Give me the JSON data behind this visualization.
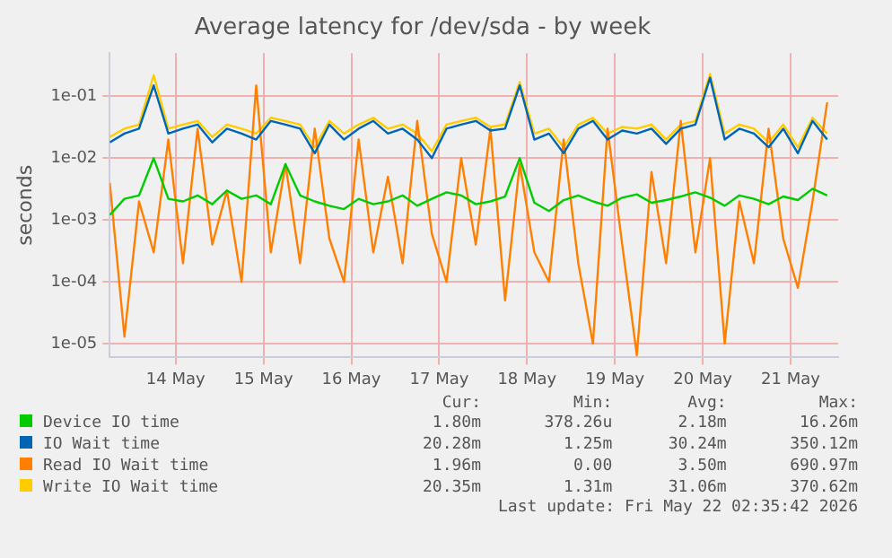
{
  "chart_data": {
    "type": "line",
    "title": "Average latency for /dev/sda - by week",
    "ylabel": "seconds",
    "x": [
      "2026-05-13T06:00",
      "2026-05-13T10:00",
      "2026-05-13T14:00",
      "2026-05-13T18:00",
      "2026-05-13T22:00",
      "2026-05-14T02:00",
      "2026-05-14T06:00",
      "2026-05-14T10:00",
      "2026-05-14T14:00",
      "2026-05-14T18:00",
      "2026-05-14T22:00",
      "2026-05-15T02:00",
      "2026-05-15T06:00",
      "2026-05-15T10:00",
      "2026-05-15T14:00",
      "2026-05-15T18:00",
      "2026-05-15T22:00",
      "2026-05-16T02:00",
      "2026-05-16T06:00",
      "2026-05-16T10:00",
      "2026-05-16T14:00",
      "2026-05-16T18:00",
      "2026-05-16T22:00",
      "2026-05-17T02:00",
      "2026-05-17T06:00",
      "2026-05-17T10:00",
      "2026-05-17T14:00",
      "2026-05-17T18:00",
      "2026-05-17T22:00",
      "2026-05-18T02:00",
      "2026-05-18T06:00",
      "2026-05-18T10:00",
      "2026-05-18T14:00",
      "2026-05-18T18:00",
      "2026-05-18T22:00",
      "2026-05-19T02:00",
      "2026-05-19T06:00",
      "2026-05-19T10:00",
      "2026-05-19T14:00",
      "2026-05-19T18:00",
      "2026-05-19T22:00",
      "2026-05-20T02:00",
      "2026-05-20T06:00",
      "2026-05-20T10:00",
      "2026-05-20T14:00",
      "2026-05-20T18:00",
      "2026-05-20T22:00",
      "2026-05-21T02:00",
      "2026-05-21T06:00",
      "2026-05-21T10:00"
    ],
    "series": [
      {
        "name": "Device IO time",
        "color": "#00cc00",
        "values": [
          0.0012,
          0.0022,
          0.0025,
          0.01,
          0.0022,
          0.002,
          0.0025,
          0.0018,
          0.003,
          0.0022,
          0.0025,
          0.0018,
          0.008,
          0.0025,
          0.002,
          0.0017,
          0.0015,
          0.0022,
          0.0018,
          0.002,
          0.0025,
          0.0017,
          0.0022,
          0.0028,
          0.0025,
          0.0018,
          0.002,
          0.0024,
          0.01,
          0.0019,
          0.0014,
          0.0021,
          0.0025,
          0.002,
          0.0017,
          0.0023,
          0.0026,
          0.0019,
          0.0021,
          0.0024,
          0.0028,
          0.0023,
          0.0017,
          0.0025,
          0.0022,
          0.0018,
          0.0024,
          0.0021,
          0.0032,
          0.0025
        ]
      },
      {
        "name": "IO Wait time",
        "color": "#0066b3",
        "values": [
          0.018,
          0.025,
          0.03,
          0.15,
          0.025,
          0.03,
          0.035,
          0.018,
          0.03,
          0.025,
          0.02,
          0.04,
          0.035,
          0.03,
          0.012,
          0.035,
          0.02,
          0.03,
          0.04,
          0.025,
          0.03,
          0.02,
          0.01,
          0.03,
          0.035,
          0.04,
          0.028,
          0.03,
          0.15,
          0.02,
          0.025,
          0.012,
          0.03,
          0.04,
          0.02,
          0.028,
          0.025,
          0.03,
          0.017,
          0.03,
          0.035,
          0.2,
          0.02,
          0.03,
          0.025,
          0.015,
          0.03,
          0.012,
          0.04,
          0.02
        ]
      },
      {
        "name": "Read IO Wait time",
        "color": "#ff8000",
        "values": [
          0.004,
          1.3e-05,
          0.002,
          0.0003,
          0.02,
          0.0002,
          0.03,
          0.0004,
          0.003,
          0.0001,
          0.15,
          0.0003,
          0.008,
          0.0002,
          0.03,
          0.0005,
          0.0001,
          0.02,
          0.0003,
          0.005,
          0.0002,
          0.04,
          0.0006,
          0.0001,
          0.01,
          0.0004,
          0.03,
          5e-05,
          0.008,
          0.0003,
          0.0001,
          0.02,
          0.0002,
          1e-05,
          0.03,
          0.0004,
          6.5e-06,
          0.006,
          0.0002,
          0.04,
          0.0003,
          0.01,
          1e-05,
          0.002,
          0.0002,
          0.03,
          0.0005,
          8e-05,
          0.002,
          0.08
        ]
      },
      {
        "name": "Write IO Wait time",
        "color": "#ffcc00",
        "values": [
          0.022,
          0.03,
          0.035,
          0.22,
          0.03,
          0.035,
          0.04,
          0.022,
          0.035,
          0.03,
          0.025,
          0.045,
          0.04,
          0.035,
          0.015,
          0.04,
          0.025,
          0.035,
          0.045,
          0.03,
          0.035,
          0.025,
          0.013,
          0.035,
          0.04,
          0.045,
          0.032,
          0.035,
          0.17,
          0.025,
          0.03,
          0.015,
          0.035,
          0.045,
          0.025,
          0.032,
          0.03,
          0.035,
          0.02,
          0.035,
          0.04,
          0.23,
          0.025,
          0.035,
          0.03,
          0.018,
          0.035,
          0.015,
          0.045,
          0.025
        ]
      }
    ],
    "xlim": [
      "2026-05-13T06:00",
      "2026-05-21T13:00"
    ],
    "xticks": [
      {
        "value": "2026-05-14",
        "label": "14 May"
      },
      {
        "value": "2026-05-15",
        "label": "15 May"
      },
      {
        "value": "2026-05-16",
        "label": "16 May"
      },
      {
        "value": "2026-05-17",
        "label": "17 May"
      },
      {
        "value": "2026-05-18",
        "label": "18 May"
      },
      {
        "value": "2026-05-19",
        "label": "19 May"
      },
      {
        "value": "2026-05-20",
        "label": "20 May"
      },
      {
        "value": "2026-05-21",
        "label": "21 May"
      }
    ],
    "log": "y",
    "ylim": [
      6e-06,
      0.5
    ],
    "yticks": [
      {
        "value": 1e-05,
        "label": "1e-05"
      },
      {
        "value": 0.0001,
        "label": "1e-04"
      },
      {
        "value": 0.001,
        "label": "1e-03"
      },
      {
        "value": 0.01,
        "label": "1e-02"
      },
      {
        "value": 0.1,
        "label": "1e-01"
      }
    ],
    "grid": true,
    "legend": "bottom",
    "marker": "none",
    "line_style": "solid",
    "annotations": [
      "Cur:",
      "Min:",
      "Avg:",
      "Max:",
      "1.80m",
      "378.26u",
      "2.18m",
      "16.26m",
      "20.28m",
      "1.25m",
      "30.24m",
      "350.12m",
      "1.96m",
      "0.00",
      "3.50m",
      "690.97m",
      "20.35m",
      "1.31m",
      "31.06m",
      "370.62m",
      "Last update: Fri May 22 02:35:42 2026"
    ]
  }
}
